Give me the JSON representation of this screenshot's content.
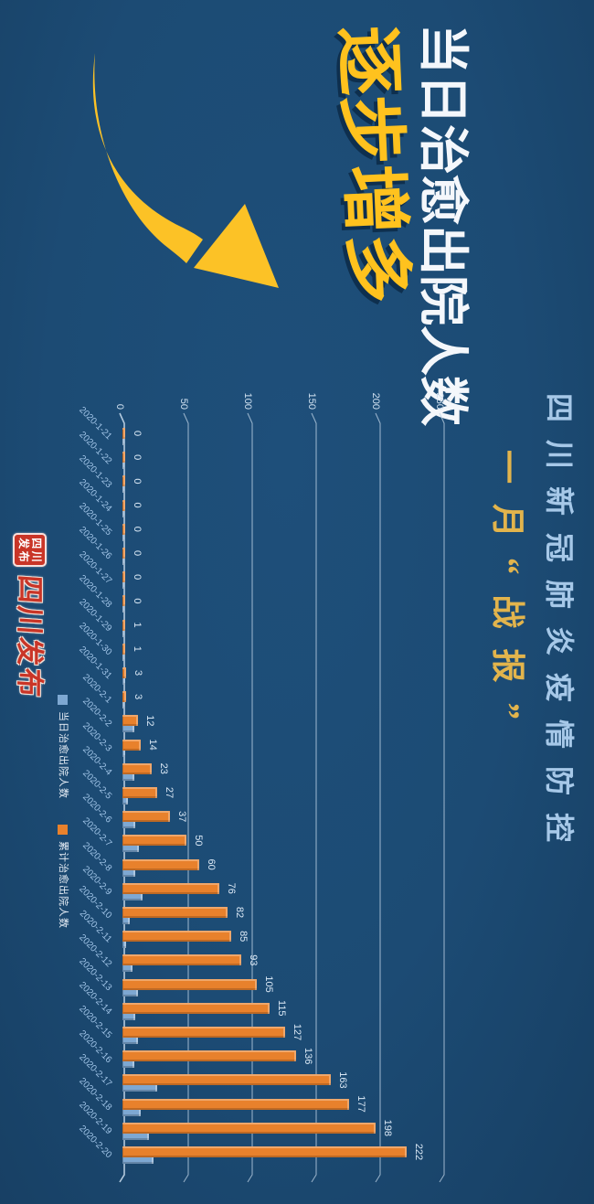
{
  "banner": {
    "title": "当日治愈出院人数",
    "subtitle": "逐步增多"
  },
  "heading": {
    "line1": "四川新冠肺炎疫情防控",
    "line2": "一月“战报”"
  },
  "logo": {
    "text": "四川发布",
    "seal_chars": [
      "四",
      "川",
      "发",
      "布"
    ]
  },
  "colors": {
    "background": "#1c4b74",
    "title_white": "#f4f7fb",
    "subtitle_yellow": "#ffc21e",
    "heading_blue": "#a6c8e8",
    "heading_yellow": "#e2b44c",
    "arrow_yellow": "#fcc226",
    "bar_daily_blue": "#7ea8d2",
    "bar_cumulative_orange": "#e8812c",
    "gridline": "#bdd1e4",
    "date_label": "#9fc3e6",
    "value_label": "#dbe9f6",
    "logo_red": "#c93527"
  },
  "chart_data": {
    "type": "bar",
    "rotation_deg_in_image": 90,
    "title": "",
    "xlabel": "",
    "ylabel": "",
    "ylim": [
      0,
      250
    ],
    "yticks": [
      0,
      50,
      100,
      150,
      200,
      250
    ],
    "grid": true,
    "legend_position": "bottom",
    "categories": [
      "2020-1-21",
      "2020-1-22",
      "2020-1-23",
      "2020-1-24",
      "2020-1-25",
      "2020-1-26",
      "2020-1-27",
      "2020-1-28",
      "2020-1-29",
      "2020-1-30",
      "2020-1-31",
      "2020-2-1",
      "2020-2-2",
      "2020-2-3",
      "2020-2-4",
      "2020-2-5",
      "2020-2-6",
      "2020-2-7",
      "2020-2-8",
      "2020-2-9",
      "2020-2-10",
      "2020-2-11",
      "2020-2-12",
      "2020-2-13",
      "2020-2-14",
      "2020-2-15",
      "2020-2-16",
      "2020-2-17",
      "2020-2-18",
      "2020-2-19",
      "2020-2-20"
    ],
    "series": [
      {
        "name": "当日治愈出院人数",
        "color": "#7ea8d2",
        "data_labels": false,
        "values": [
          0,
          0,
          0,
          0,
          0,
          0,
          0,
          0,
          1,
          0,
          2,
          0,
          9,
          2,
          9,
          4,
          10,
          13,
          10,
          16,
          6,
          3,
          8,
          12,
          10,
          12,
          9,
          27,
          14,
          21,
          24
        ]
      },
      {
        "name": "累计治愈出院人数",
        "color": "#e8812c",
        "data_labels": true,
        "values": [
          0,
          0,
          0,
          0,
          0,
          0,
          0,
          0,
          1,
          1,
          3,
          3,
          12,
          14,
          23,
          27,
          37,
          50,
          60,
          76,
          82,
          85,
          93,
          105,
          115,
          127,
          136,
          163,
          177,
          198,
          222
        ]
      }
    ]
  }
}
